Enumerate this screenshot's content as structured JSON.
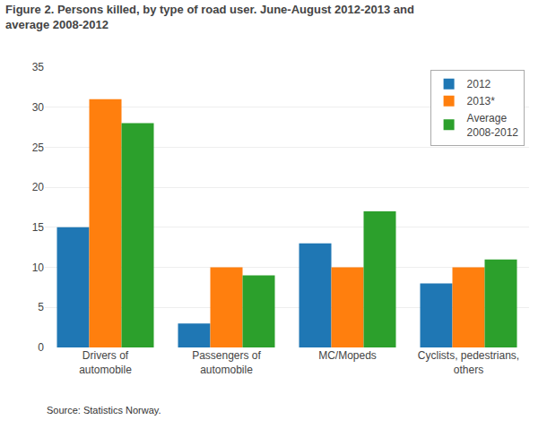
{
  "chart_data": {
    "type": "bar",
    "title": "Figure 2. Persons killed, by type of road user. June-August 2012-2013 and\naverage 2008-2012",
    "categories": [
      "Drivers of\nautomobile",
      "Passengers of\nautomobile",
      "MC/Mopeds",
      "Cyclists, pedestrians,\nothers"
    ],
    "series": [
      {
        "name": "2012",
        "values": [
          15,
          3,
          13,
          8
        ]
      },
      {
        "name": "2013*",
        "values": [
          31,
          10,
          10,
          10
        ]
      },
      {
        "name": "Average\n2008-2012",
        "values": [
          28,
          9,
          17,
          11
        ]
      }
    ],
    "ylim": [
      0,
      35
    ],
    "yticks": [
      0,
      5,
      10,
      15,
      20,
      25,
      30,
      35
    ],
    "grid": true,
    "legend": "upper right",
    "annotations": [
      "Source: Statistics Norway."
    ]
  }
}
